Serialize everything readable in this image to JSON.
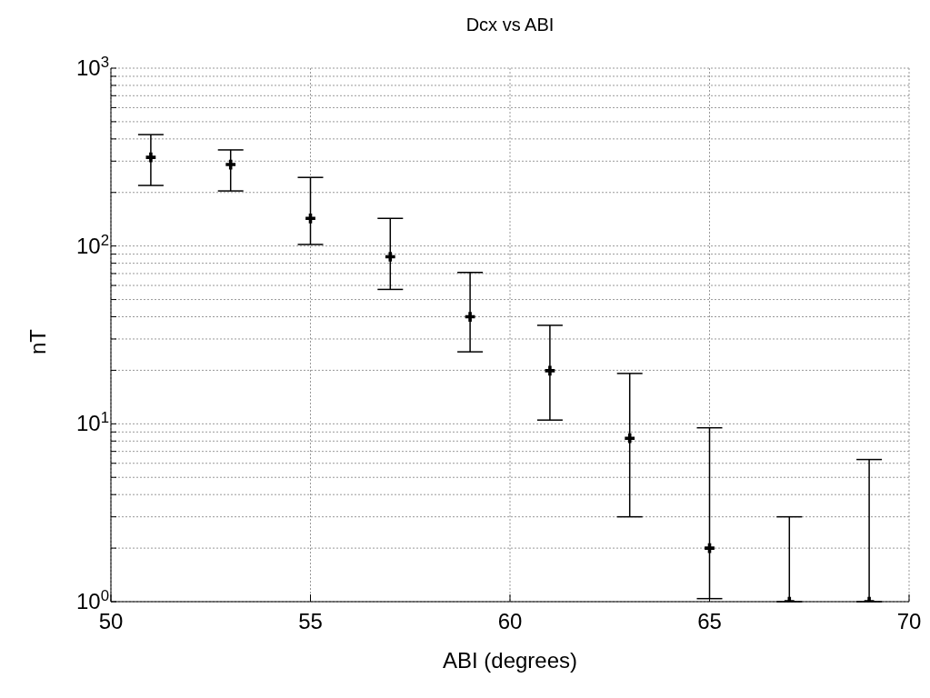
{
  "chart_data": {
    "type": "scatter",
    "title": "Dcx vs ABI",
    "xlabel": "ABI (degrees)",
    "ylabel": "nT",
    "x": [
      51,
      53,
      55,
      57,
      59,
      61,
      63,
      65,
      67,
      69
    ],
    "values": [
      315,
      287,
      143,
      87,
      40,
      19.9,
      8.3,
      2.0,
      1,
      1
    ],
    "errors": [
      [
        219,
        423
      ],
      [
        204,
        347
      ],
      [
        102,
        243
      ],
      [
        57,
        143
      ],
      [
        25.4,
        71
      ],
      [
        10.5,
        35.8
      ],
      [
        3.0,
        19.2
      ],
      [
        1.04,
        9.5
      ],
      [
        1,
        3.0
      ],
      [
        1,
        6.3
      ]
    ],
    "color": "#000000",
    "marker": "cross",
    "log": "y",
    "grid": true,
    "xlim": [
      50,
      70
    ],
    "xticks": [
      50,
      55,
      60,
      65,
      70
    ],
    "ylim": [
      1,
      1000
    ],
    "yticks": [
      {
        "value": 1,
        "label": "10$^{0}$"
      },
      {
        "value": 2,
        "label": null
      },
      {
        "value": 3,
        "label": null
      },
      {
        "value": 4,
        "label": null
      },
      {
        "value": 5,
        "label": null
      },
      {
        "value": 6,
        "label": null
      },
      {
        "value": 7,
        "label": null
      },
      {
        "value": 8,
        "label": null
      },
      {
        "value": 9,
        "label": null
      },
      {
        "value": 10,
        "label": "10$^{1}$"
      },
      {
        "value": 20,
        "label": null
      },
      {
        "value": 30,
        "label": null
      },
      {
        "value": 40,
        "label": null
      },
      {
        "value": 50,
        "label": null
      },
      {
        "value": 60,
        "label": null
      },
      {
        "value": 70,
        "label": null
      },
      {
        "value": 80,
        "label": null
      },
      {
        "value": 90,
        "label": null
      },
      {
        "value": 100,
        "label": "10$^{2}$"
      },
      {
        "value": 200,
        "label": null
      },
      {
        "value": 300,
        "label": null
      },
      {
        "value": 400,
        "label": null
      },
      {
        "value": 500,
        "label": null
      },
      {
        "value": 600,
        "label": null
      },
      {
        "value": 700,
        "label": null
      },
      {
        "value": 800,
        "label": null
      },
      {
        "value": 900,
        "label": null
      },
      {
        "value": 1000,
        "label": "10$^{3}$"
      }
    ]
  }
}
